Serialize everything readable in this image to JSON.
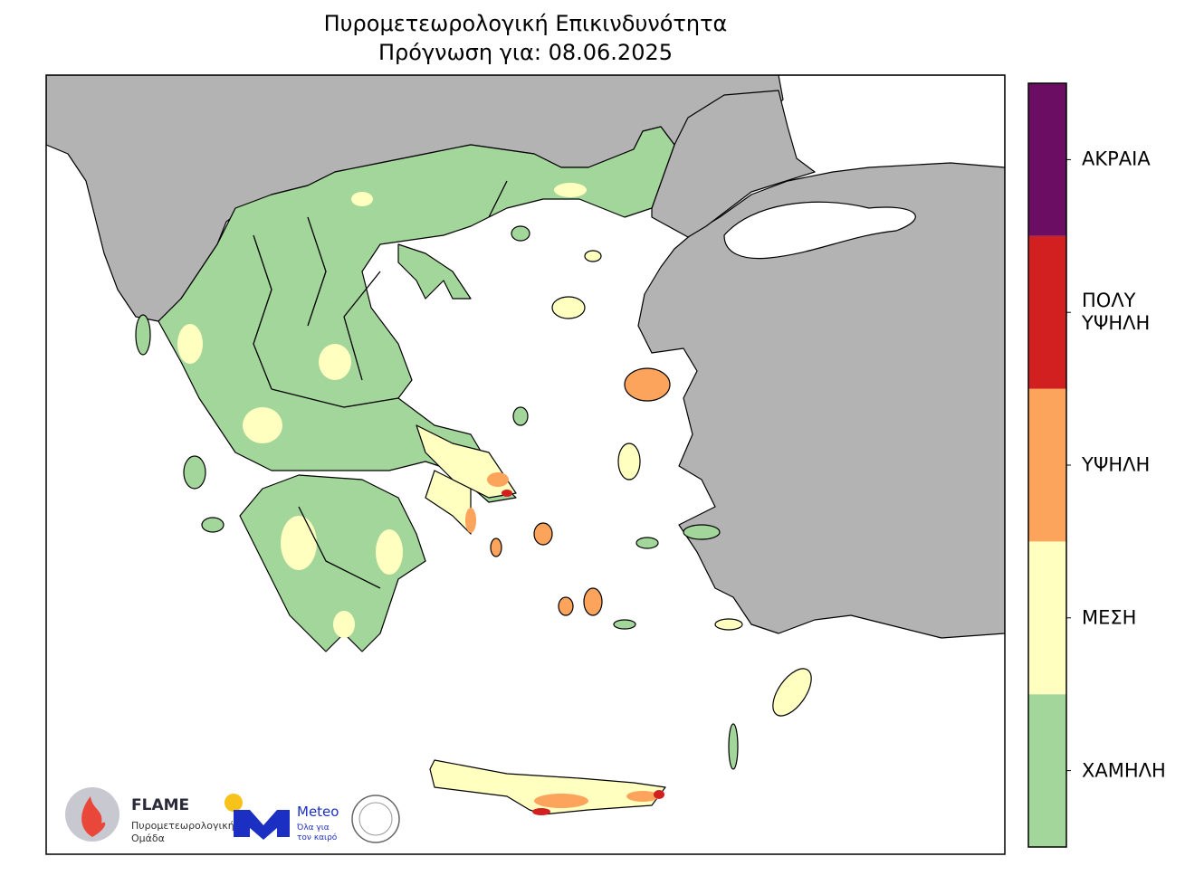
{
  "header": {
    "title": "Πυρομετεωρολογική Επικινδυνότητα",
    "subtitle": "Πρόγνωση για: 08.06.2025"
  },
  "legend": {
    "items": [
      {
        "label": "ΧΑΜΗΛΗ",
        "color": "#a3d69a"
      },
      {
        "label": "ΜΕΣΗ",
        "color": "#ffffc0"
      },
      {
        "label": "ΥΨΗΛΗ",
        "color": "#fca35c"
      },
      {
        "label": "ΠΟΛΥ\nΥΨΗΛΗ",
        "color": "#d22020"
      },
      {
        "label": "ΑΚΡΑΙΑ",
        "color": "#6b0d63"
      }
    ]
  },
  "logos": {
    "flame_name": "FLAME",
    "flame_line1": "Πυρομετεωρολογική",
    "flame_line2": "Ομάδα",
    "meteo_name": "Meteo",
    "meteo_line1": "Όλα για",
    "meteo_line2": "τον καιρό"
  }
}
